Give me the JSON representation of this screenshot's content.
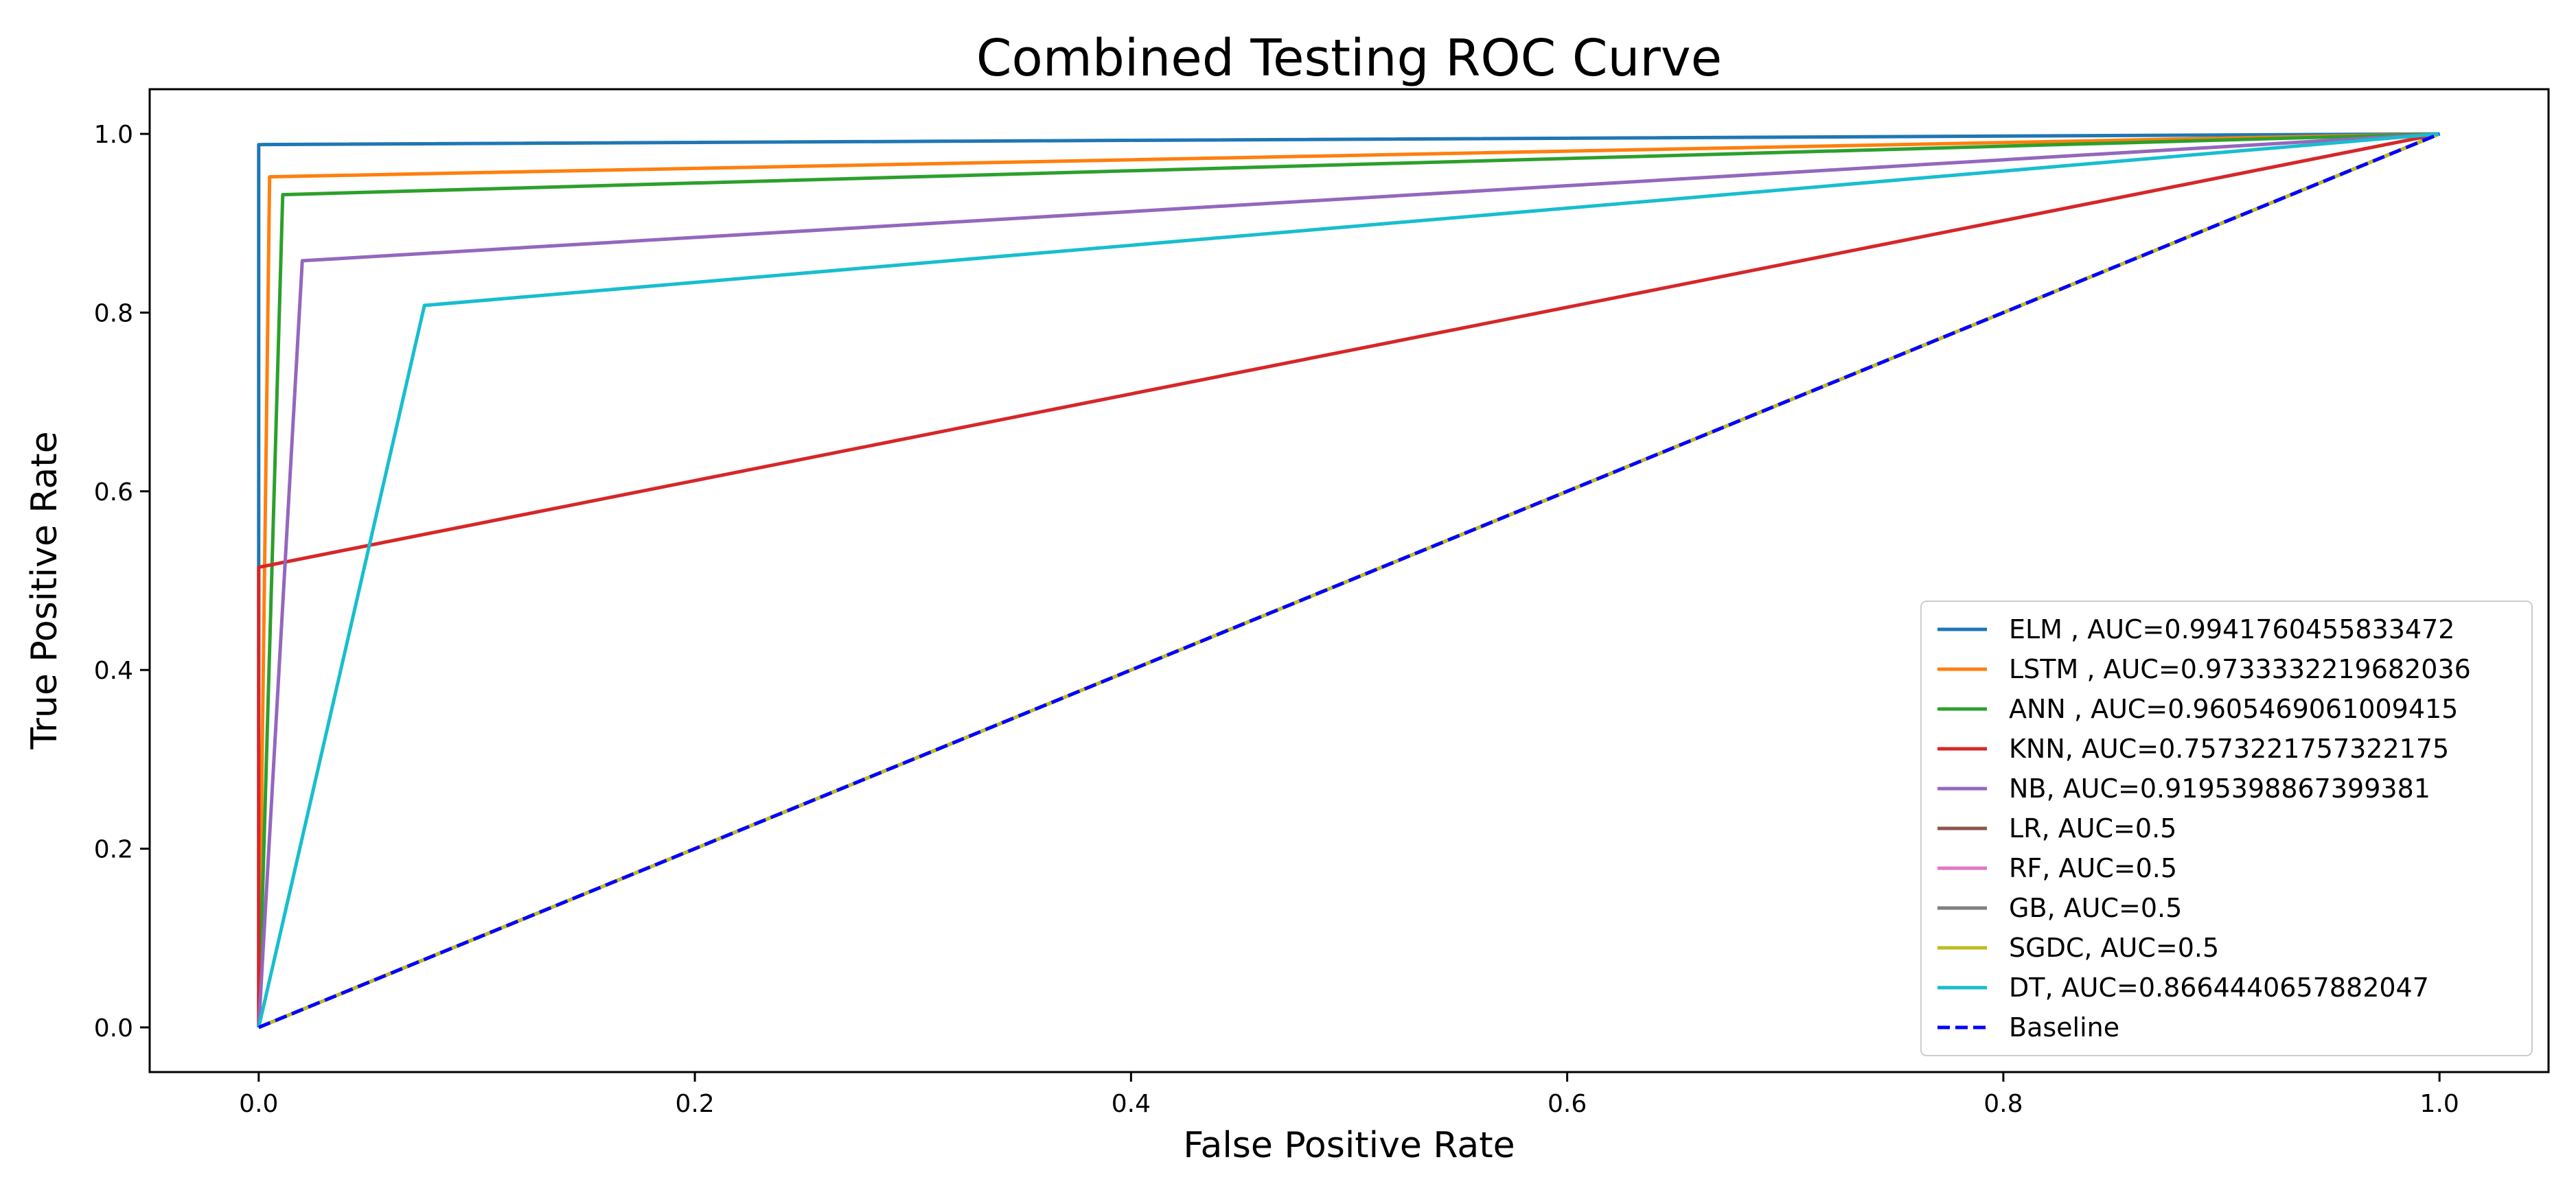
{
  "chart_data": {
    "type": "line",
    "title": "Combined Testing ROC Curve",
    "xlabel": "False Positive Rate",
    "ylabel": "True Positive Rate",
    "xlim": [
      -0.05,
      1.05
    ],
    "ylim": [
      -0.05,
      1.05
    ],
    "xticks": [
      0.0,
      0.2,
      0.4,
      0.6,
      0.8,
      1.0
    ],
    "xtick_labels": [
      "0.0",
      "0.2",
      "0.4",
      "0.6",
      "0.8",
      "1.0"
    ],
    "yticks": [
      0.0,
      0.2,
      0.4,
      0.6,
      0.8,
      1.0
    ],
    "ytick_labels": [
      "0.0",
      "0.2",
      "0.4",
      "0.6",
      "0.8",
      "1.0"
    ],
    "grid": false,
    "legend_position": "lower-right",
    "series": [
      {
        "name": "ELM , AUC=0.9941760455833472",
        "color": "#1f77b4",
        "dash": "solid",
        "x": [
          0,
          0.0,
          1.0
        ],
        "y": [
          0,
          0.988,
          1.0
        ]
      },
      {
        "name": "LSTM , AUC=0.9733332219682036",
        "color": "#ff7f0e",
        "dash": "solid",
        "x": [
          0,
          0.005,
          1.0
        ],
        "y": [
          0,
          0.952,
          1.0
        ]
      },
      {
        "name": "ANN , AUC=0.9605469061009415",
        "color": "#2ca02c",
        "dash": "solid",
        "x": [
          0,
          0.011,
          1.0
        ],
        "y": [
          0,
          0.932,
          1.0
        ]
      },
      {
        "name": "KNN, AUC=0.7573221757322175",
        "color": "#d62728",
        "dash": "solid",
        "x": [
          0,
          0.0,
          1.0
        ],
        "y": [
          0,
          0.515,
          1.0
        ]
      },
      {
        "name": "NB, AUC=0.9195398867399381",
        "color": "#9467bd",
        "dash": "solid",
        "x": [
          0,
          0.02,
          1.0
        ],
        "y": [
          0,
          0.858,
          1.0
        ]
      },
      {
        "name": "LR, AUC=0.5",
        "color": "#8c564b",
        "dash": "solid",
        "x": [
          0,
          1.0
        ],
        "y": [
          0,
          1.0
        ]
      },
      {
        "name": "RF, AUC=0.5",
        "color": "#e377c2",
        "dash": "solid",
        "x": [
          0,
          1.0
        ],
        "y": [
          0,
          1.0
        ]
      },
      {
        "name": "GB, AUC=0.5",
        "color": "#7f7f7f",
        "dash": "solid",
        "x": [
          0,
          1.0
        ],
        "y": [
          0,
          1.0
        ]
      },
      {
        "name": "SGDC, AUC=0.5",
        "color": "#bcbd22",
        "dash": "solid",
        "x": [
          0,
          1.0
        ],
        "y": [
          0,
          1.0
        ]
      },
      {
        "name": "DT, AUC=0.8664440657882047",
        "color": "#17becf",
        "dash": "solid",
        "x": [
          0,
          0.076,
          1.0
        ],
        "y": [
          0,
          0.808,
          1.0
        ]
      },
      {
        "name": "Baseline",
        "color": "#0000ff",
        "dash": "dashed",
        "x": [
          0,
          1.0
        ],
        "y": [
          0,
          1.0
        ]
      }
    ]
  }
}
